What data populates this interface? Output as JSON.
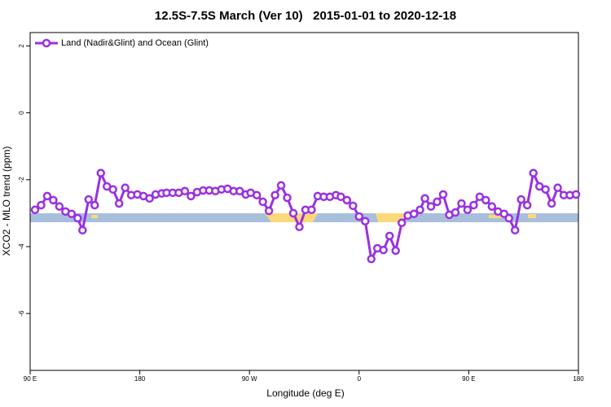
{
  "chart_data": {
    "type": "line",
    "title": "12.5S-7.5S March (Ver 10)   2015-01-01 to 2020-12-18",
    "xlabel": "Longitude (deg E)",
    "ylabel": "XCO2 - MLO trend (ppm)",
    "legend": "top-left",
    "xlim": [
      90,
      540
    ],
    "ylim": [
      -7.7,
      2.4
    ],
    "xticks": [
      {
        "value": 90,
        "label": "90 E"
      },
      180,
      {
        "value": 270,
        "label": "90 W"
      },
      {
        "value": 360,
        "label": "0"
      },
      {
        "value": 450,
        "label": "90 E"
      },
      {
        "value": 540,
        "label": "180"
      }
    ],
    "yticks": [
      2,
      0,
      -2,
      -4,
      -6
    ],
    "x": [
      94,
      99,
      104,
      109,
      114,
      119,
      124,
      129,
      133,
      138,
      143,
      148,
      153,
      158,
      163,
      168,
      173,
      178,
      183,
      188,
      193,
      198,
      202,
      207,
      212,
      217,
      222,
      227,
      232,
      237,
      242,
      247,
      252,
      257,
      262,
      267,
      271,
      276,
      281,
      286,
      291,
      296,
      301,
      306,
      311,
      316,
      321,
      326,
      331,
      336,
      341,
      345,
      350,
      355,
      360,
      365,
      370,
      375,
      380,
      385,
      390,
      395,
      400,
      405,
      410,
      414,
      419,
      424,
      429,
      434,
      439,
      444,
      449,
      454,
      459,
      464,
      469,
      474,
      479,
      483,
      488,
      493,
      498,
      503,
      508,
      513,
      518,
      523,
      528,
      533,
      538
    ],
    "series": [
      {
        "name": "Land (Nadir&Glint) and Ocean (Glint)",
        "color": "#9b30e0",
        "values": [
          -2.9,
          -2.76,
          -2.49,
          -2.61,
          -2.8,
          -2.95,
          -3.02,
          -3.15,
          -3.51,
          -2.59,
          -2.76,
          -1.8,
          -2.2,
          -2.29,
          -2.71,
          -2.24,
          -2.46,
          -2.44,
          -2.49,
          -2.56,
          -2.44,
          -2.41,
          -2.39,
          -2.39,
          -2.39,
          -2.34,
          -2.49,
          -2.37,
          -2.32,
          -2.32,
          -2.34,
          -2.29,
          -2.27,
          -2.34,
          -2.34,
          -2.44,
          -2.39,
          -2.46,
          -2.66,
          -2.93,
          -2.46,
          -2.17,
          -2.54,
          -3.0,
          -3.41,
          -2.9,
          -2.9,
          -2.49,
          -2.51,
          -2.51,
          -2.46,
          -2.51,
          -2.61,
          -2.78,
          -3.1,
          -3.24,
          -4.37,
          -4.05,
          -4.1,
          -3.68,
          -4.12,
          -3.29,
          -3.07,
          -3.02,
          -2.9,
          -2.56,
          -2.8,
          -2.66,
          -2.44,
          -3.05,
          -2.98,
          -2.71,
          -2.9,
          -2.76,
          -2.51,
          -2.61,
          -2.8,
          -2.95,
          -3.02,
          -3.15,
          -3.51,
          -2.59,
          -2.76,
          -1.8,
          -2.2,
          -2.29,
          -2.71,
          -2.24,
          -2.46,
          -2.46,
          -2.44
        ]
      }
    ]
  }
}
